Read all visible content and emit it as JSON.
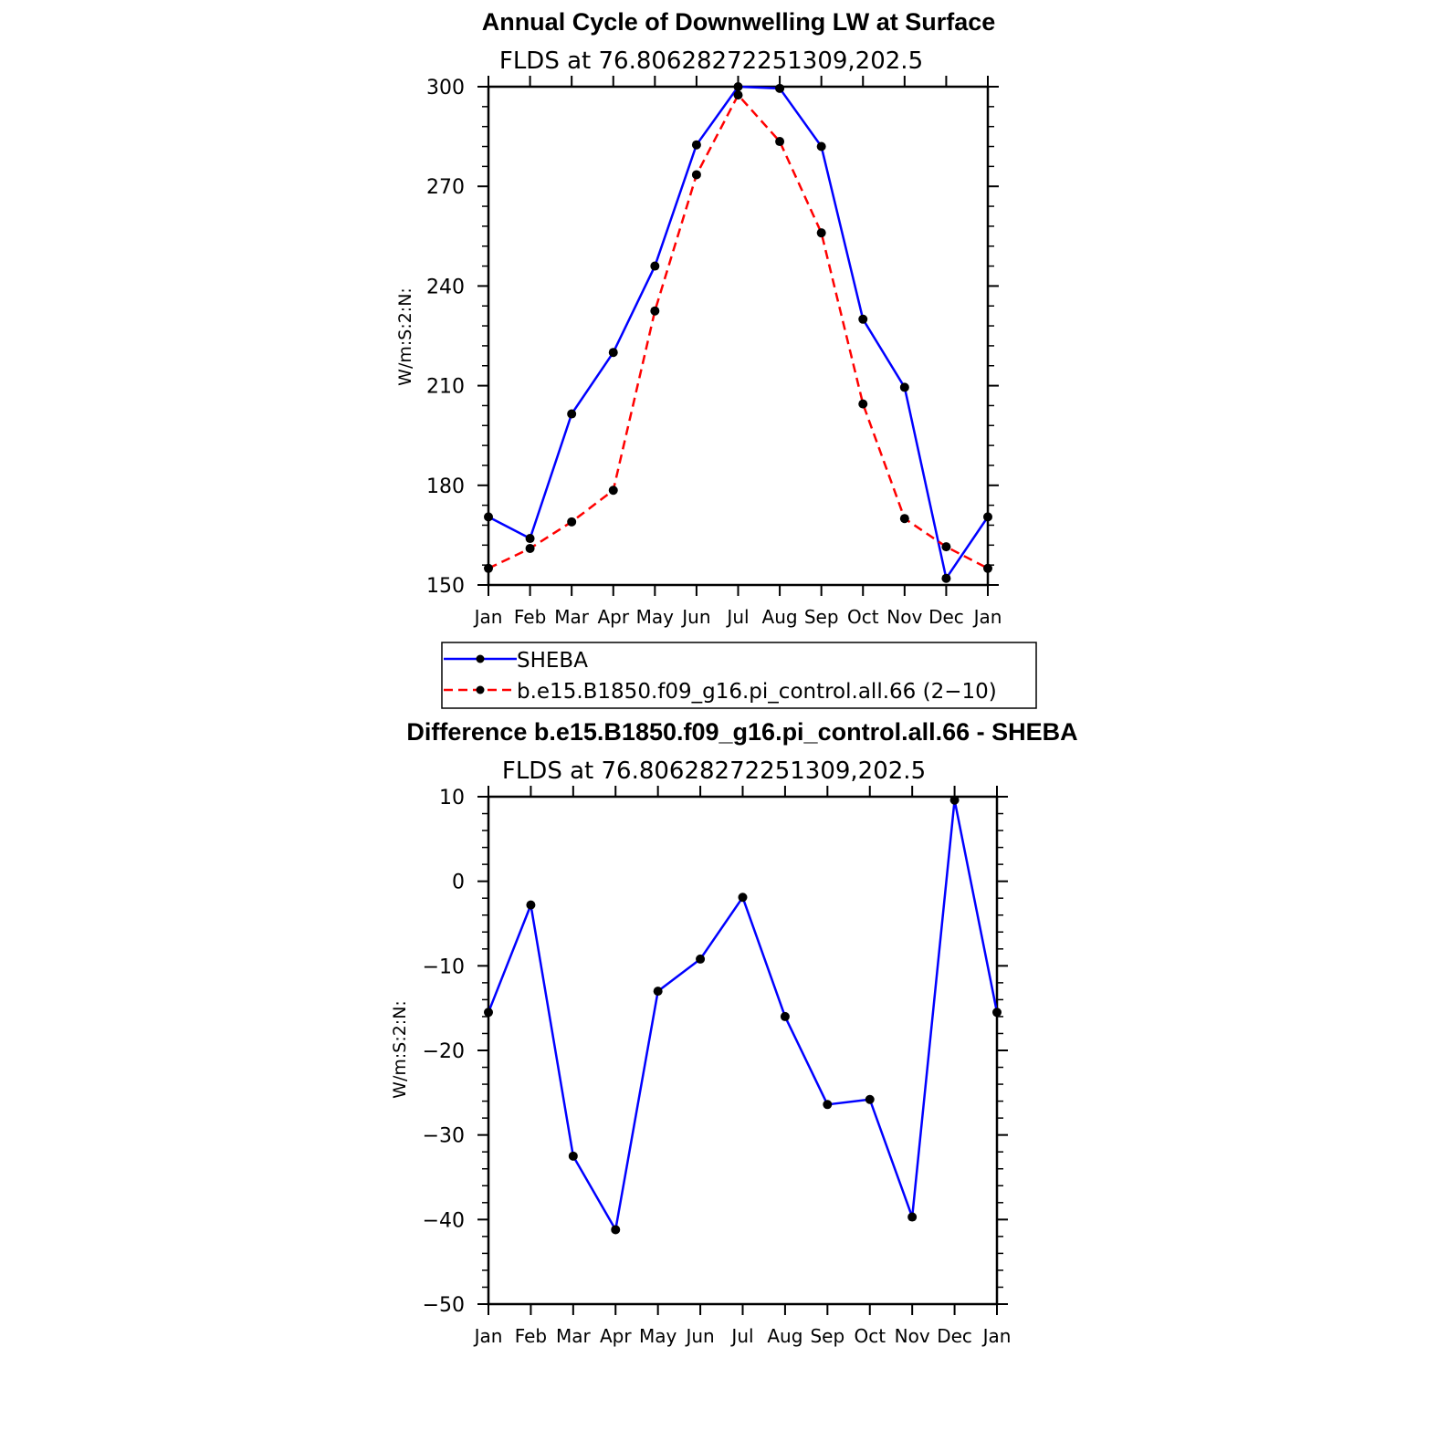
{
  "chart_data": [
    {
      "type": "line",
      "title": "Annual Cycle of Downwelling LW at Surface",
      "subtitle": "FLDS at 76.80628272251309,202.5",
      "ylabel": "W/m:S:2:N:",
      "xlabel": "",
      "categories": [
        "Jan",
        "Feb",
        "Mar",
        "Apr",
        "May",
        "Jun",
        "Jul",
        "Aug",
        "Sep",
        "Oct",
        "Nov",
        "Dec",
        "Jan"
      ],
      "ylim": [
        150,
        300
      ],
      "yticks": [
        "150",
        "180",
        "210",
        "240",
        "270",
        "300"
      ],
      "series": [
        {
          "name": "SHEBA",
          "color": "#0000ff",
          "dash": "solid",
          "values": [
            170.5,
            164,
            201.5,
            220,
            246,
            282.5,
            300,
            299.5,
            282,
            230,
            209.5,
            152,
            170.5
          ]
        },
        {
          "name": "b.e15.B1850.f09_g16.pi_control.all.66 (2−10)",
          "color": "#ff0000",
          "dash": "dashed",
          "values": [
            155,
            161,
            169,
            178.5,
            232.5,
            273.5,
            297.5,
            283.5,
            256,
            204.5,
            170,
            161.5,
            155
          ]
        }
      ],
      "legend": "below"
    },
    {
      "type": "line",
      "title": "Difference b.e15.B1850.f09_g16.pi_control.all.66 - SHEBA",
      "subtitle": "FLDS at 76.80628272251309,202.5",
      "ylabel": "W/m:S:2:N:",
      "xlabel": "",
      "categories": [
        "Jan",
        "Feb",
        "Mar",
        "Apr",
        "May",
        "Jun",
        "Jul",
        "Aug",
        "Sep",
        "Oct",
        "Nov",
        "Dec",
        "Jan"
      ],
      "ylim": [
        -50,
        10
      ],
      "yticks": [
        "−50",
        "−40",
        "−30",
        "−20",
        "−10",
        "0",
        "10"
      ],
      "series": [
        {
          "color": "#0000ff",
          "dash": "solid",
          "values": [
            -15.5,
            -2.8,
            -32.5,
            -41.2,
            -13,
            -9.2,
            -1.9,
            -16,
            -26.4,
            -25.8,
            -39.7,
            9.6,
            -15.5
          ]
        }
      ]
    }
  ]
}
